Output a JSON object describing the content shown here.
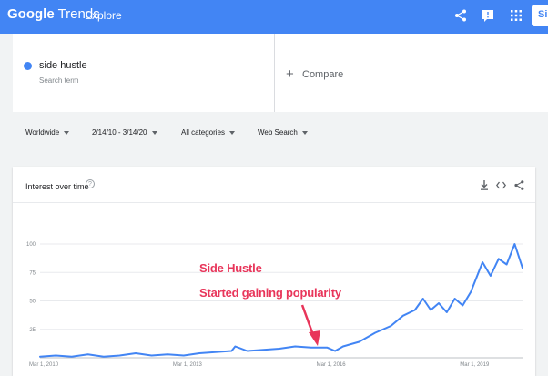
{
  "header": {
    "logo_brand": "Google",
    "logo_product": "Trends",
    "nav": "Explore",
    "account_initials": "Si"
  },
  "search": {
    "term": "side hustle",
    "term_type": "Search term",
    "compare_label": "Compare"
  },
  "filters": {
    "region": "Worldwide",
    "date_range": "2/14/10 - 3/14/20",
    "category": "All categories",
    "search_type": "Web Search"
  },
  "card": {
    "title": "Interest over time"
  },
  "annotation": {
    "line1": "Side Hustle",
    "line2": "Started gaining popularity"
  },
  "colors": {
    "brand": "#4285f4",
    "series": "#4285f4",
    "annotation": "#e8355a"
  },
  "chart_data": {
    "type": "line",
    "title": "Interest over time",
    "xlabel": "",
    "ylabel": "",
    "ylim": [
      0,
      100
    ],
    "yticks": [
      25,
      50,
      75,
      100
    ],
    "xtick_labels": [
      "Mar 1, 2010",
      "Mar 1, 2013",
      "Mar 1, 2016",
      "Mar 1, 2019"
    ],
    "grid": true,
    "series": [
      {
        "name": "side hustle",
        "x": [
          "2010-02",
          "2010-06",
          "2010-10",
          "2011-02",
          "2011-06",
          "2011-10",
          "2012-02",
          "2012-06",
          "2012-10",
          "2013-02",
          "2013-06",
          "2013-10",
          "2014-02",
          "2014-03",
          "2014-06",
          "2014-10",
          "2015-02",
          "2015-06",
          "2015-10",
          "2016-02",
          "2016-04",
          "2016-06",
          "2016-10",
          "2017-02",
          "2017-06",
          "2017-09",
          "2017-12",
          "2018-02",
          "2018-04",
          "2018-06",
          "2018-08",
          "2018-10",
          "2018-12",
          "2019-02",
          "2019-05",
          "2019-07",
          "2019-09",
          "2019-11",
          "2020-01",
          "2020-03"
        ],
        "values": [
          1,
          2,
          1,
          3,
          1,
          2,
          4,
          2,
          3,
          2,
          4,
          5,
          6,
          10,
          6,
          7,
          8,
          10,
          9,
          9,
          6,
          10,
          14,
          22,
          28,
          37,
          42,
          52,
          42,
          48,
          40,
          52,
          46,
          58,
          84,
          72,
          87,
          82,
          100,
          79
        ]
      }
    ]
  }
}
